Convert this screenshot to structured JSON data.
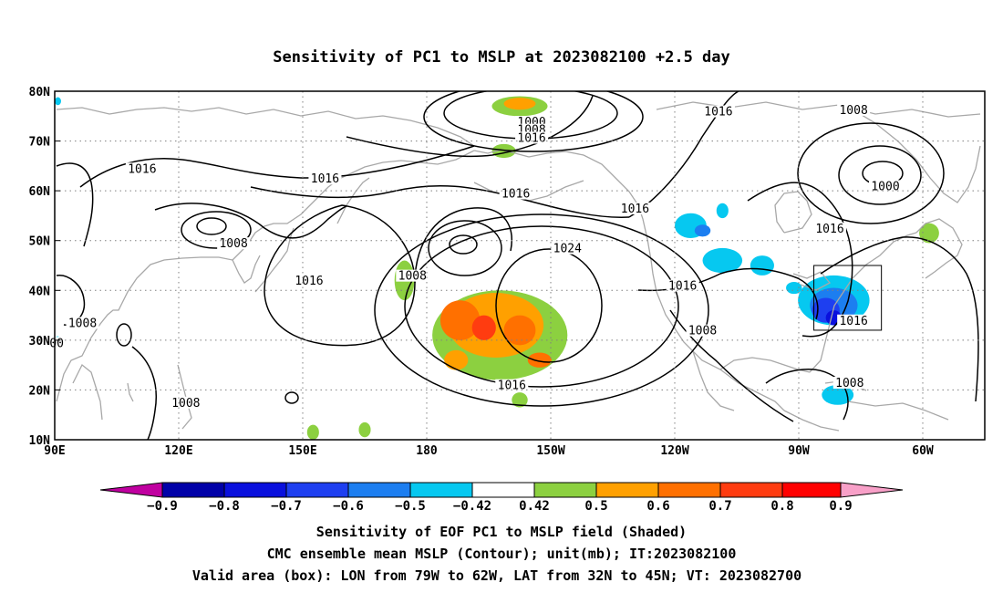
{
  "title": "Sensitivity of PC1 to MSLP at 2023082100 +2.5 day",
  "lon_ticks": [
    "90E",
    "120E",
    "150E",
    "180",
    "150W",
    "120W",
    "90W",
    "60W"
  ],
  "lat_ticks": [
    "80N",
    "70N",
    "60N",
    "50N",
    "40N",
    "30N",
    "20N",
    "10N"
  ],
  "contour_labels": [
    {
      "text": "1000",
      "lon": 210,
      "lat": 73.4
    },
    {
      "text": "1008",
      "lon": 210,
      "lat": 71.8
    },
    {
      "text": "1016",
      "lon": 210,
      "lat": 70.2
    },
    {
      "text": "1016",
      "lon": 257,
      "lat": 75.5
    },
    {
      "text": "1008",
      "lon": 291,
      "lat": 75.8
    },
    {
      "text": "1000",
      "lon": 299,
      "lat": 60.5
    },
    {
      "text": "1016",
      "lon": 112,
      "lat": 64
    },
    {
      "text": "1016",
      "lon": 158,
      "lat": 62
    },
    {
      "text": "1016",
      "lon": 206,
      "lat": 59
    },
    {
      "text": "1016",
      "lon": 236,
      "lat": 56
    },
    {
      "text": "1016",
      "lon": 285,
      "lat": 52
    },
    {
      "text": "1008",
      "lon": 135,
      "lat": 49
    },
    {
      "text": "1008",
      "lon": 180,
      "lat": 42.5
    },
    {
      "text": "1024",
      "lon": 219,
      "lat": 48
    },
    {
      "text": "1016",
      "lon": 154,
      "lat": 41.5
    },
    {
      "text": "1016",
      "lon": 248,
      "lat": 40.5
    },
    {
      "text": "1008",
      "lon": 97,
      "lat": 33
    },
    {
      "text": "00",
      "lon": 90.5,
      "lat": 29
    },
    {
      "text": "1008",
      "lon": 253,
      "lat": 31.5
    },
    {
      "text": "1016",
      "lon": 291,
      "lat": 33.5
    },
    {
      "text": "1016",
      "lon": 205,
      "lat": 20.5
    },
    {
      "text": "1008",
      "lon": 290,
      "lat": 21
    },
    {
      "text": "1008",
      "lon": 123,
      "lat": 17
    }
  ],
  "shading": {
    "positive": [
      {
        "lon": 207,
        "lat": 77,
        "rx": 7,
        "ry": 2,
        "level": 0.42
      },
      {
        "lon": 207,
        "lat": 77.5,
        "rx": 4,
        "ry": 1.2,
        "level": 0.5
      },
      {
        "lon": 203,
        "lat": 68,
        "rx": 3,
        "ry": 1.4,
        "level": 0.42
      },
      {
        "lon": 178,
        "lat": 42,
        "rx": 2.5,
        "ry": 4,
        "level": 0.42
      },
      {
        "lon": 202,
        "lat": 31,
        "rx": 17,
        "ry": 9,
        "level": 0.42
      },
      {
        "lon": 201,
        "lat": 33,
        "rx": 12,
        "ry": 6.5,
        "level": 0.5
      },
      {
        "lon": 192,
        "lat": 34,
        "rx": 5,
        "ry": 4,
        "level": 0.6
      },
      {
        "lon": 198,
        "lat": 32.5,
        "rx": 3,
        "ry": 2.5,
        "level": 0.7
      },
      {
        "lon": 207,
        "lat": 32,
        "rx": 4,
        "ry": 3,
        "level": 0.6
      },
      {
        "lon": 212,
        "lat": 26,
        "rx": 3,
        "ry": 1.5,
        "level": 0.6
      },
      {
        "lon": 191,
        "lat": 26,
        "rx": 3,
        "ry": 2,
        "level": 0.5
      },
      {
        "lon": 207,
        "lat": 18,
        "rx": 2,
        "ry": 1.5,
        "level": 0.42
      },
      {
        "lon": 168,
        "lat": 12,
        "rx": 1.5,
        "ry": 1.5,
        "level": 0.42
      },
      {
        "lon": 155,
        "lat": 11.5,
        "rx": 1.5,
        "ry": 1.5,
        "level": 0.42
      },
      {
        "lon": 310,
        "lat": 51.5,
        "rx": 2.5,
        "ry": 2,
        "level": 0.42
      }
    ],
    "negative": [
      {
        "lon": 250,
        "lat": 53,
        "rx": 4,
        "ry": 2.5,
        "level": -0.42
      },
      {
        "lon": 253,
        "lat": 52,
        "rx": 2,
        "ry": 1.2,
        "level": -0.5
      },
      {
        "lon": 258,
        "lat": 56,
        "rx": 1.5,
        "ry": 1.5,
        "level": -0.42
      },
      {
        "lon": 258,
        "lat": 46,
        "rx": 5,
        "ry": 2.5,
        "level": -0.42
      },
      {
        "lon": 268,
        "lat": 45,
        "rx": 3,
        "ry": 2,
        "level": -0.42
      },
      {
        "lon": 286,
        "lat": 38,
        "rx": 9,
        "ry": 5,
        "level": -0.42
      },
      {
        "lon": 286,
        "lat": 37,
        "rx": 6,
        "ry": 3.5,
        "level": -0.5
      },
      {
        "lon": 284,
        "lat": 36,
        "rx": 3.5,
        "ry": 2.5,
        "level": -0.6
      },
      {
        "lon": 286,
        "lat": 34.5,
        "rx": 2,
        "ry": 1.5,
        "level": -0.7
      },
      {
        "lon": 276,
        "lat": 40.5,
        "rx": 2,
        "ry": 1.2,
        "level": -0.42
      },
      {
        "lon": 287,
        "lat": 19,
        "rx": 4,
        "ry": 2,
        "level": -0.42
      },
      {
        "lon": 90.8,
        "lat": 78,
        "rx": 0.8,
        "ry": 0.8,
        "level": -0.42
      },
      {
        "lon": 90.7,
        "lat": 30,
        "rx": 0.7,
        "ry": 0.8,
        "level": -0.42
      }
    ]
  },
  "colorbar": {
    "labels": [
      "−0.9",
      "−0.8",
      "−0.7",
      "−0.6",
      "−0.5",
      "−0.42",
      "0.42",
      "0.5",
      "0.6",
      "0.7",
      "0.8",
      "0.9"
    ],
    "colors": {
      "lt_-0.9": "#c000a0",
      "-0.9_-0.8": "#0000a8",
      "-0.8_-0.7": "#0a10dd",
      "-0.7_-0.6": "#1e3ff0",
      "-0.6_-0.5": "#1c7ef0",
      "-0.5_-0.42": "#06c8f0",
      "-0.42_0.42": "#ffffff",
      "0.42_0.5": "#8cd040",
      "0.5_0.6": "#ffa000",
      "0.6_0.7": "#ff7000",
      "0.7_0.8": "#ff3c10",
      "0.8_0.9": "#ff0000",
      "gt_0.9": "#f8a0c8"
    }
  },
  "valid_box": {
    "lon_min": 281,
    "lon_max": 298,
    "lat_min": 32,
    "lat_max": 45
  },
  "colors": {
    "coast": "#a8a8a8",
    "contour": "#000000",
    "grid": "#808080"
  },
  "captions": [
    "Sensitivity of EOF PC1 to MSLP field (Shaded)",
    "CMC ensemble mean MSLP (Contour); unit(mb); IT:2023082100",
    "Valid area (box): LON from 79W to 62W, LAT from 32N to 45N; VT: 2023082700"
  ]
}
